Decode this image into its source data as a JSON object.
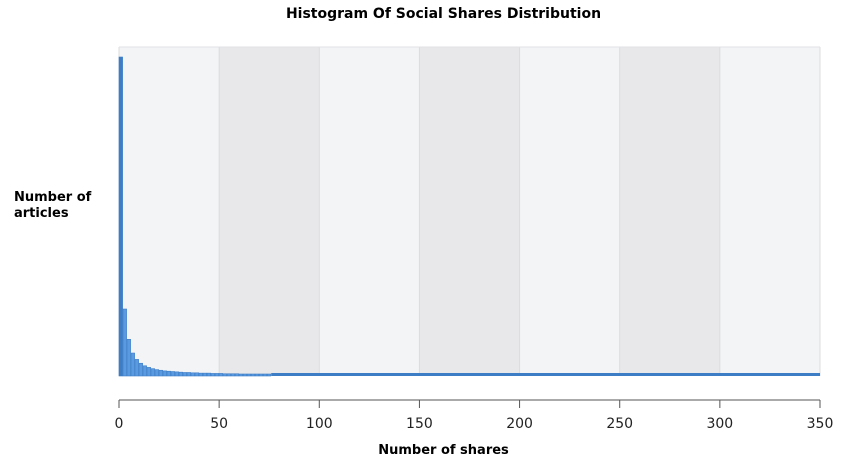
{
  "chart_data": {
    "type": "bar",
    "title": "Histogram Of Social Shares Distribution",
    "xlabel": "Number of shares",
    "ylabel": "Number of articles",
    "xlim": [
      0,
      350
    ],
    "x_ticks": [
      0,
      50,
      100,
      150,
      200,
      250,
      300,
      350
    ],
    "bin_width": 2,
    "bins": [
      0,
      2,
      4,
      6,
      8,
      10,
      12,
      14,
      16,
      18,
      20,
      22,
      24,
      26,
      28,
      30,
      32,
      34,
      36,
      38,
      40,
      42,
      44,
      46,
      48,
      50,
      52,
      54,
      56,
      58,
      60,
      62,
      64,
      66,
      68,
      70,
      72,
      74
    ],
    "relative_counts": [
      1.0,
      0.21,
      0.115,
      0.072,
      0.052,
      0.04,
      0.032,
      0.027,
      0.023,
      0.02,
      0.018,
      0.016,
      0.015,
      0.014,
      0.013,
      0.012,
      0.011,
      0.011,
      0.01,
      0.01,
      0.009,
      0.009,
      0.009,
      0.008,
      0.008,
      0.008,
      0.007,
      0.007,
      0.007,
      0.007,
      0.006,
      0.006,
      0.006,
      0.006,
      0.005,
      0.005,
      0.005,
      0.005
    ],
    "tail_level": 0.004,
    "band_colors": [
      "#f3f4f6",
      "#e8e8ea"
    ],
    "bar_color": "#3d7dc6",
    "bar_color_light": "#5a9ae0",
    "grid": true,
    "legend": false
  }
}
